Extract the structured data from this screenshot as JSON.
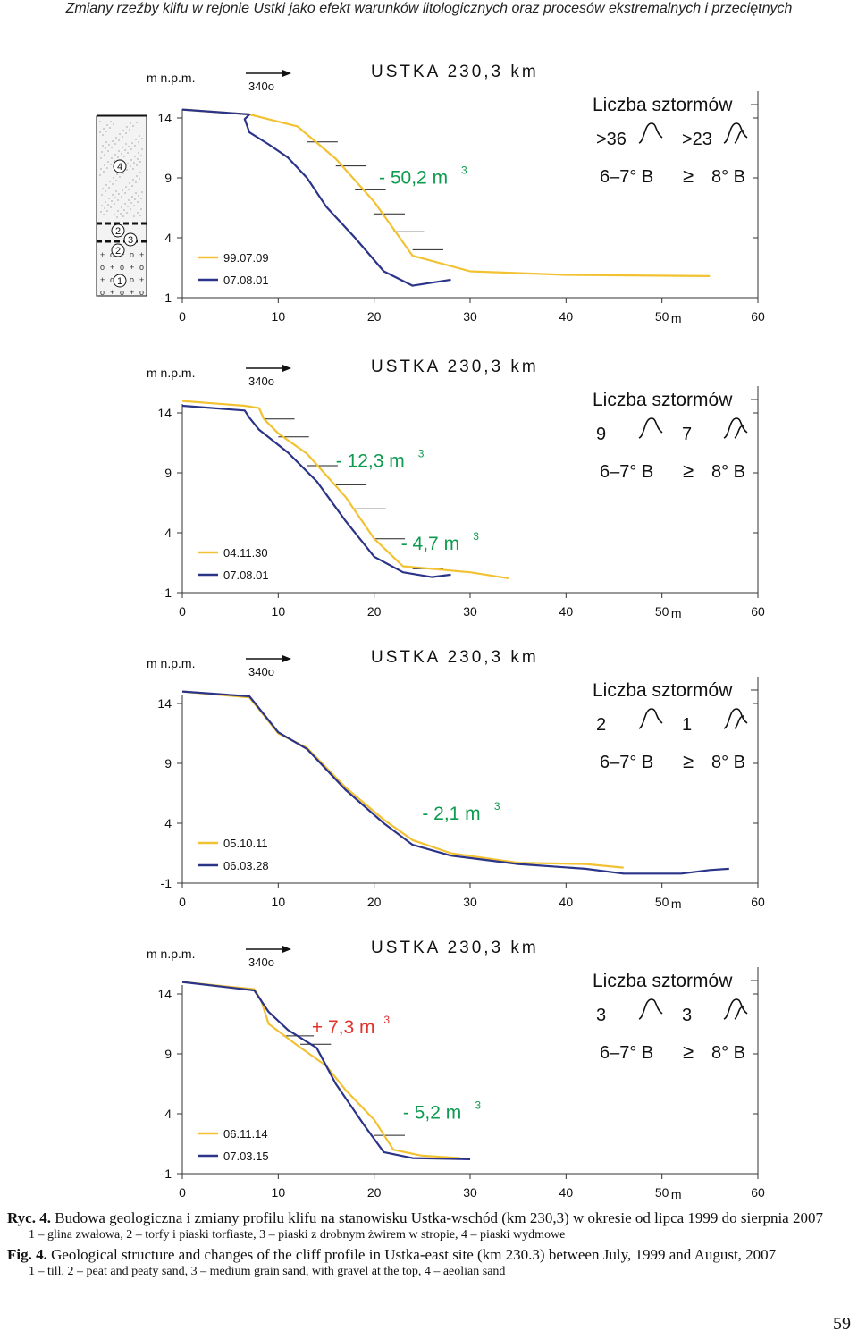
{
  "header": "Zmiany rzeźby klifu w rejonie Ustki jako efekt warunków litologicznych oraz procesów ekstremalnych i przeciętnych",
  "colors": {
    "yellow": "#f2c233",
    "blue": "#2b3488",
    "green": "#0e9a4f",
    "red": "#e0322a",
    "axis": "#333333"
  },
  "chart_data": [
    {
      "type": "line",
      "title": "USTKA 230,3 km",
      "ylabel": "m n.p.m.",
      "xunit": "m",
      "direction": "340o",
      "xlim": [
        0,
        60
      ],
      "ylim": [
        -1,
        14
      ],
      "xticks": [
        0,
        10,
        20,
        30,
        40,
        50,
        60
      ],
      "yticks": [
        14,
        9,
        4,
        -1
      ],
      "storm_title": "Liczba sztormów",
      "storms": [
        ">36",
        ">23"
      ],
      "storm_classes": [
        "6–7° B",
        "8° B"
      ],
      "geq": "≥",
      "series": [
        {
          "name": "99.07.09",
          "color": "yellow",
          "points": [
            [
              0,
              14.7
            ],
            [
              7,
              14.3
            ],
            [
              12,
              13.3
            ],
            [
              16,
              10.6
            ],
            [
              20,
              7
            ],
            [
              24,
              2.5
            ],
            [
              30,
              1.2
            ],
            [
              40,
              0.9
            ],
            [
              55,
              0.8
            ]
          ]
        },
        {
          "name": "07.08.01",
          "color": "blue",
          "points": [
            [
              0,
              14.7
            ],
            [
              7,
              14.3
            ],
            [
              6.5,
              13.9
            ],
            [
              7,
              12.8
            ],
            [
              9,
              11.8
            ],
            [
              11,
              10.7
            ],
            [
              13,
              9
            ],
            [
              15,
              6.6
            ],
            [
              18,
              4
            ],
            [
              21,
              1.2
            ],
            [
              24,
              0
            ],
            [
              28,
              0.5
            ]
          ]
        }
      ],
      "volumes": [
        {
          "text": "- 50,2 m",
          "sup": "3",
          "color": "green",
          "x": 20.5,
          "y": 8.5
        }
      ],
      "hatch": [
        [
          13,
          12
        ],
        [
          16,
          10
        ],
        [
          18,
          8
        ],
        [
          20,
          6
        ],
        [
          22,
          4.5
        ],
        [
          24,
          3
        ]
      ],
      "has_column": true,
      "column_labels": [
        "4",
        "2",
        "3",
        "2",
        "1"
      ]
    },
    {
      "type": "line",
      "title": "USTKA 230,3 km",
      "ylabel": "m n.p.m.",
      "xunit": "m",
      "direction": "340o",
      "xlim": [
        0,
        60
      ],
      "ylim": [
        -1,
        14
      ],
      "xticks": [
        0,
        10,
        20,
        30,
        40,
        50,
        60
      ],
      "yticks": [
        14,
        9,
        4,
        -1
      ],
      "storm_title": "Liczba sztormów",
      "storms": [
        "9",
        "7"
      ],
      "storm_classes": [
        "6–7° B",
        "8° B"
      ],
      "geq": "≥",
      "series": [
        {
          "name": "04.11.30",
          "color": "yellow",
          "points": [
            [
              0,
              15
            ],
            [
              6.5,
              14.6
            ],
            [
              8,
              14.4
            ],
            [
              8.5,
              13.5
            ],
            [
              10,
              12.3
            ],
            [
              13,
              10.6
            ],
            [
              17,
              7
            ],
            [
              20,
              3.5
            ],
            [
              23,
              1.2
            ],
            [
              30,
              0.7
            ],
            [
              34,
              0.2
            ]
          ]
        },
        {
          "name": "07.08.01",
          "color": "blue",
          "points": [
            [
              0,
              14.6
            ],
            [
              6.5,
              14.2
            ],
            [
              7,
              13.6
            ],
            [
              8,
              12.6
            ],
            [
              11,
              10.7
            ],
            [
              14,
              8.3
            ],
            [
              17,
              5
            ],
            [
              20,
              2
            ],
            [
              23,
              0.7
            ],
            [
              26,
              0.3
            ],
            [
              28,
              0.5
            ]
          ]
        }
      ],
      "volumes": [
        {
          "text": "- 12,3 m",
          "sup": "3",
          "color": "green",
          "x": 16,
          "y": 9.5
        },
        {
          "text": "- 4,7 m",
          "sup": "3",
          "color": "green",
          "x": 22.8,
          "y": 2.6
        }
      ],
      "hatch": [
        [
          8.5,
          13.5
        ],
        [
          10,
          12
        ],
        [
          13,
          9.6
        ],
        [
          16,
          8
        ],
        [
          18,
          6
        ],
        [
          20,
          3.5
        ],
        [
          24,
          1
        ]
      ],
      "has_column": false
    },
    {
      "type": "line",
      "title": "USTKA 230,3 km",
      "ylabel": "m n.p.m.",
      "xunit": "m",
      "direction": "340o",
      "xlim": [
        0,
        60
      ],
      "ylim": [
        -1,
        14
      ],
      "xticks": [
        0,
        10,
        20,
        30,
        40,
        50,
        60
      ],
      "yticks": [
        14,
        9,
        4,
        -1
      ],
      "storm_title": "Liczba sztormów",
      "storms": [
        "2",
        "1"
      ],
      "storm_classes": [
        "6–7° B",
        "8° B"
      ],
      "geq": "≥",
      "series": [
        {
          "name": "05.10.11",
          "color": "yellow",
          "points": [
            [
              0,
              15
            ],
            [
              7,
              14.5
            ],
            [
              8,
              13.5
            ],
            [
              10,
              11.5
            ],
            [
              13,
              10.3
            ],
            [
              17,
              7
            ],
            [
              21,
              4.3
            ],
            [
              24,
              2.6
            ],
            [
              28,
              1.5
            ],
            [
              35,
              0.7
            ],
            [
              42,
              0.6
            ],
            [
              46,
              0.3
            ]
          ]
        },
        {
          "name": "06.03.28",
          "color": "blue",
          "points": [
            [
              0,
              15
            ],
            [
              7,
              14.6
            ],
            [
              8,
              13.6
            ],
            [
              10,
              11.6
            ],
            [
              13,
              10.2
            ],
            [
              17,
              6.8
            ],
            [
              21,
              4
            ],
            [
              24,
              2.2
            ],
            [
              28,
              1.3
            ],
            [
              35,
              0.6
            ],
            [
              42,
              0.2
            ],
            [
              46,
              -0.2
            ],
            [
              52,
              -0.2
            ],
            [
              55,
              0.1
            ],
            [
              57,
              0.2
            ]
          ]
        }
      ],
      "volumes": [
        {
          "text": "- 2,1 m",
          "sup": "3",
          "color": "green",
          "x": 25,
          "y": 4.3
        }
      ],
      "hatch": [],
      "has_column": false
    },
    {
      "type": "line",
      "title": "USTKA 230,3 km",
      "ylabel": "m n.p.m.",
      "xunit": "m",
      "direction": "340o",
      "xlim": [
        0,
        60
      ],
      "ylim": [
        -1,
        14
      ],
      "xticks": [
        0,
        10,
        20,
        30,
        40,
        50,
        60
      ],
      "yticks": [
        14,
        9,
        4,
        -1
      ],
      "storm_title": "Liczba sztormów",
      "storms": [
        "3",
        "3"
      ],
      "storm_classes": [
        "6–7° B",
        "8° B"
      ],
      "geq": "≥",
      "series": [
        {
          "name": "06.11.14",
          "color": "yellow",
          "points": [
            [
              0,
              15
            ],
            [
              7.5,
              14.4
            ],
            [
              8.2,
              13.5
            ],
            [
              9,
              11.5
            ],
            [
              12,
              9.7
            ],
            [
              15,
              8
            ],
            [
              17,
              6
            ],
            [
              20,
              3.5
            ],
            [
              22,
              1
            ],
            [
              25,
              0.5
            ],
            [
              29,
              0.3
            ]
          ]
        },
        {
          "name": "07.03.15",
          "color": "blue",
          "points": [
            [
              0,
              15
            ],
            [
              7.5,
              14.3
            ],
            [
              9,
              12.5
            ],
            [
              11,
              11
            ],
            [
              14,
              9.5
            ],
            [
              16,
              6.5
            ],
            [
              19,
              3
            ],
            [
              21,
              0.8
            ],
            [
              24,
              0.3
            ],
            [
              30,
              0.2
            ]
          ]
        }
      ],
      "volumes": [
        {
          "text": "+ 7,3 m",
          "sup": "3",
          "color": "red",
          "x": 13.5,
          "y": 10.7
        },
        {
          "text": "- 5,2 m",
          "sup": "3",
          "color": "green",
          "x": 23,
          "y": 3.6
        }
      ],
      "hatch": [
        [
          10.5,
          10.5
        ],
        [
          12.3,
          9.8
        ],
        [
          20,
          2.2
        ]
      ],
      "has_column": false
    }
  ],
  "caption": {
    "pl_label": "Ryc. 4.",
    "pl_text": " Budowa geologiczna i zmiany profilu klifu na stanowisku Ustka-wschód (km 230,3) w okresie od lipca 1999 do sierpnia 2007",
    "pl_legend": "1 – glina zwałowa, 2 – torfy i piaski torfiaste, 3 – piaski z drobnym żwirem w stropie, 4 – piaski wydmowe",
    "en_label": "Fig. 4.",
    "en_text": " Geological structure and changes of the cliff profile in Ustka-east site (km 230.3) between July, 1999 and August, 2007",
    "en_legend": "1 – till, 2 – peat and peaty sand, 3 – medium grain sand, with gravel at the top, 4 – aeolian sand"
  },
  "page_number": "59"
}
